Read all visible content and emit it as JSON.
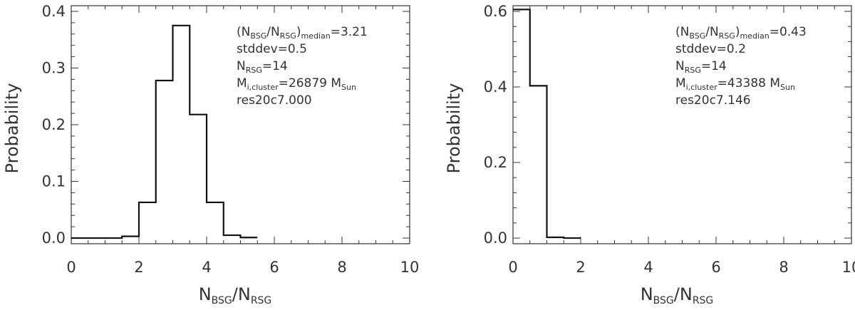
{
  "chart_data": [
    {
      "type": "histogram",
      "xlabel": {
        "main": "N",
        "sub1": "BSG",
        "mid": "/N",
        "sub2": "RSG"
      },
      "ylabel": "Probability",
      "xlim": [
        0,
        10
      ],
      "ylim": [
        -0.01,
        0.41
      ],
      "xticks": [
        0,
        2,
        4,
        6,
        8,
        10
      ],
      "yticks": [
        0.0,
        0.1,
        0.2,
        0.3,
        0.4
      ],
      "ytick_labels": [
        "0.0",
        "0.1",
        "0.2",
        "0.3",
        "0.4"
      ],
      "bin_edges": [
        0,
        0.5,
        1.0,
        1.5,
        2.0,
        2.5,
        3.0,
        3.5,
        4.0,
        4.5,
        5.0,
        5.5
      ],
      "values": [
        0.0,
        0.0,
        0.0,
        0.003,
        0.063,
        0.278,
        0.375,
        0.218,
        0.063,
        0.005,
        0.001
      ],
      "annotation": {
        "median_open": "(N",
        "median_sub1": "BSG",
        "median_slash": "/N",
        "median_sub2": "RSG",
        "median_close": ")",
        "median_sub3": "median",
        "median_value": "=3.21",
        "stddev": "stddev=0.5",
        "nrsg_main": "N",
        "nrsg_sub": "RSG",
        "nrsg_value": "=14",
        "mass_main": "M",
        "mass_sub": "i,cluster",
        "mass_value": "=26879 M",
        "mass_unit_sub": "Sun",
        "run": "res20c7.000"
      }
    },
    {
      "type": "histogram",
      "xlabel": {
        "main": "N",
        "sub1": "BSG",
        "mid": "/N",
        "sub2": "RSG"
      },
      "ylabel": "Probability",
      "xlim": [
        0,
        10
      ],
      "ylim": [
        -0.015,
        0.615
      ],
      "xticks": [
        0,
        2,
        4,
        6,
        8,
        10
      ],
      "yticks": [
        0.0,
        0.2,
        0.4,
        0.6
      ],
      "ytick_labels": [
        "0.0",
        "0.2",
        "0.4",
        "0.6"
      ],
      "bin_edges": [
        0,
        0.5,
        1.0,
        1.5,
        2.0
      ],
      "values": [
        0.605,
        0.403,
        0.002,
        0.0
      ],
      "annotation": {
        "median_open": "(N",
        "median_sub1": "BSG",
        "median_slash": "/N",
        "median_sub2": "RSG",
        "median_close": ")",
        "median_sub3": "median",
        "median_value": "=0.43",
        "stddev": "stddev=0.2",
        "nrsg_main": "N",
        "nrsg_sub": "RSG",
        "nrsg_value": "=14",
        "mass_main": "M",
        "mass_sub": "i,cluster",
        "mass_value": "=43388 M",
        "mass_unit_sub": "Sun",
        "run": "res20c7.146"
      }
    }
  ]
}
